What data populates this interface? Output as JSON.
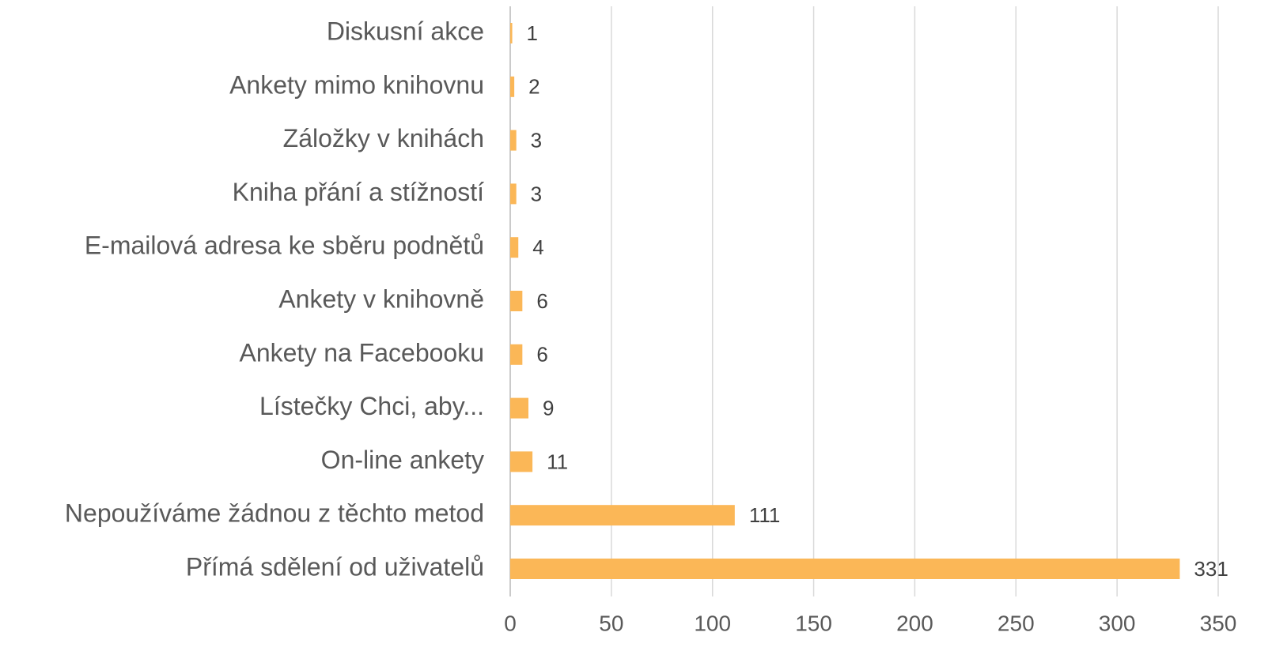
{
  "chart_data": {
    "type": "barh",
    "categories": [
      "Diskusní akce",
      "Ankety mimo knihovnu",
      "Záložky v knihách",
      "Kniha přání a stížností",
      "E-mailová adresa ke sběru podnětů",
      "Ankety v knihovně",
      "Ankety na Facebooku",
      "Lístečky Chci, aby...",
      "On-line ankety",
      "Nepoužíváme žádnou z těchto metod",
      "Přímá sdělení od uživatelů"
    ],
    "values": [
      1,
      2,
      3,
      3,
      4,
      6,
      6,
      9,
      11,
      111,
      331
    ],
    "color": "#fbb757",
    "xlim": [
      0,
      350
    ],
    "xticks": [
      0,
      50,
      100,
      150,
      200,
      250,
      300,
      350
    ],
    "grid": true
  }
}
